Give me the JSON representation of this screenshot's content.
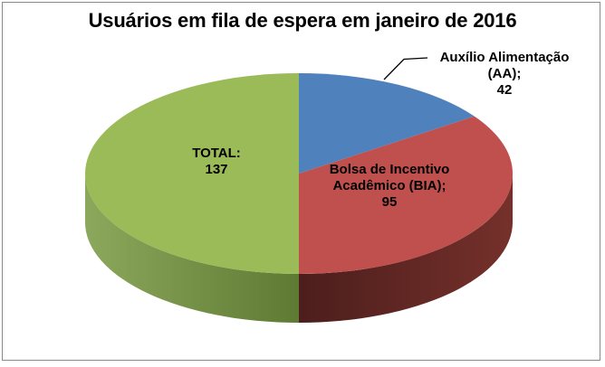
{
  "window": {
    "background": "#FFFFFF",
    "border_color": "#8A8A8A"
  },
  "chart_data": {
    "type": "pie",
    "style": "3d-pie",
    "title": "Usuários em fila de espera em janeiro de 2016",
    "start_angle_deg": 0,
    "direction": "clockwise",
    "total": 274,
    "legend": "none",
    "slices": [
      {
        "name": "Auxílio Alimentação (AA)",
        "value": 42,
        "color": "#4F81BD",
        "label_lines": [
          "Auxílio Alimentação",
          "(AA);",
          "42"
        ],
        "label_placement": "outside-top-right-with-leader-line"
      },
      {
        "name": "Bolsa de Incentivo Acadêmico (BIA)",
        "value": 95,
        "color": "#C0504D",
        "side_colors": [
          "#4C1E1C",
          "#75302B"
        ],
        "label_lines": [
          "Bolsa de Incentivo",
          "Acadêmico (BIA);",
          "95"
        ],
        "label_placement": "inside"
      },
      {
        "name": "TOTAL",
        "value": 137,
        "color": "#9BBB59",
        "side_colors": [
          "#8BA85C",
          "#5F7A33"
        ],
        "label_lines": [
          "TOTAL:",
          "137"
        ],
        "label_placement": "inside"
      }
    ],
    "label_text_color": "#000000",
    "leader_line_color": "#000000"
  }
}
